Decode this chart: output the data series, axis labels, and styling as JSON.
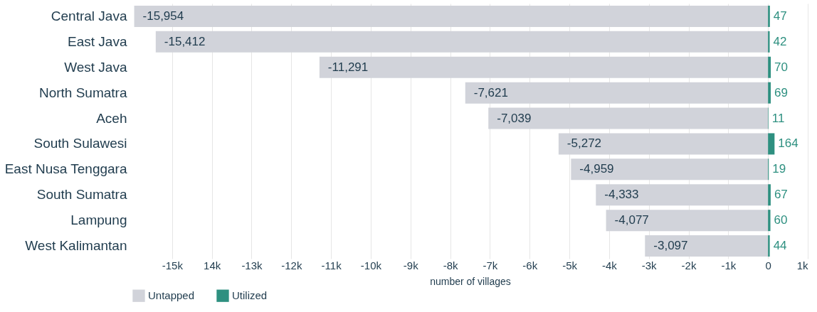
{
  "chart_data": {
    "type": "bar",
    "orientation": "horizontal",
    "xlabel": "number of villages",
    "categories": [
      "Central Java",
      "East Java",
      "West Java",
      "North Sumatra",
      "Aceh",
      "South Sulawesi",
      "East Nusa Tenggara",
      "South Sumatra",
      "Lampung",
      "West Kalimantan"
    ],
    "series": [
      {
        "name": "Untapped",
        "color": "#d1d3da",
        "values": [
          -15954,
          -15412,
          -11291,
          -7621,
          -7039,
          -5272,
          -4959,
          -4333,
          -4077,
          -3097
        ],
        "value_labels": [
          "-15,954",
          "-15,412",
          "-11,291",
          "-7,621",
          "-7,039",
          "-5,272",
          "-4,959",
          "-4,333",
          "-4,077",
          "-3,097"
        ]
      },
      {
        "name": "Utilized",
        "color": "#2e9080",
        "values": [
          47,
          42,
          70,
          69,
          11,
          164,
          19,
          67,
          60,
          44
        ],
        "value_labels": [
          "47",
          "42",
          "70",
          "69",
          "11",
          "164",
          "19",
          "67",
          "60",
          "44"
        ]
      }
    ],
    "xlim": [
      -16000,
      1000
    ],
    "xticks": [
      {
        "value": -15000,
        "label": "-15k"
      },
      {
        "value": -14000,
        "label": "14k"
      },
      {
        "value": -13000,
        "label": "-13k"
      },
      {
        "value": -12000,
        "label": "-12k"
      },
      {
        "value": -11000,
        "label": "-11k"
      },
      {
        "value": -10000,
        "label": "-10k"
      },
      {
        "value": -9000,
        "label": "-9k"
      },
      {
        "value": -8000,
        "label": "-8k"
      },
      {
        "value": -7000,
        "label": "-7k"
      },
      {
        "value": -6000,
        "label": "-6k"
      },
      {
        "value": -5000,
        "label": "-5k"
      },
      {
        "value": -4000,
        "label": "-4k"
      },
      {
        "value": -3000,
        "label": "-3k"
      },
      {
        "value": -2000,
        "label": "-2k"
      },
      {
        "value": -1000,
        "label": "-1k"
      },
      0,
      {
        "value": 1000,
        "label": "1k"
      }
    ],
    "stacked": true,
    "grid": "x",
    "legend": "bottom left"
  }
}
